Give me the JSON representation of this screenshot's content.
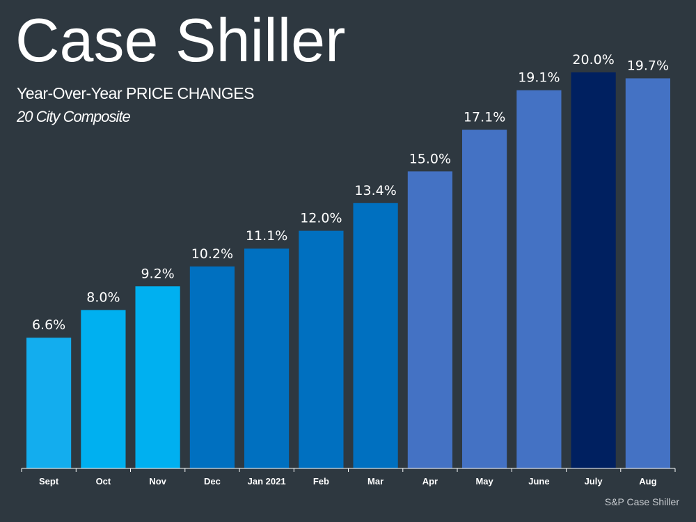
{
  "header": {
    "title": "Case Shiller",
    "subtitle": "Year-Over-Year PRICE CHANGES",
    "subsubtitle": "20 City Composite"
  },
  "footer": {
    "source": "S&P Case Shiller"
  },
  "chart_data": {
    "type": "bar",
    "categories": [
      "Sept",
      "Oct",
      "Nov",
      "Dec",
      "Jan 2021",
      "Feb",
      "Mar",
      "Apr",
      "May",
      "June",
      "July",
      "Aug"
    ],
    "values": [
      6.6,
      8.0,
      9.2,
      10.2,
      11.1,
      12.0,
      13.4,
      15.0,
      17.1,
      19.1,
      20.0,
      19.7
    ],
    "value_labels": [
      "6.6%",
      "8.0%",
      "9.2%",
      "10.2%",
      "11.1%",
      "12.0%",
      "13.4%",
      "15.0%",
      "17.1%",
      "19.1%",
      "20.0%",
      "19.7%"
    ],
    "bar_colors": [
      "#13adee",
      "#00b0f0",
      "#00b0f0",
      "#0070c0",
      "#0070c0",
      "#0070c0",
      "#0070c0",
      "#4472c4",
      "#4472c4",
      "#4472c4",
      "#002060",
      "#4472c4"
    ],
    "ylim": [
      0,
      20
    ],
    "grid": false,
    "legend": "none",
    "axis_color": "#ffffff"
  }
}
